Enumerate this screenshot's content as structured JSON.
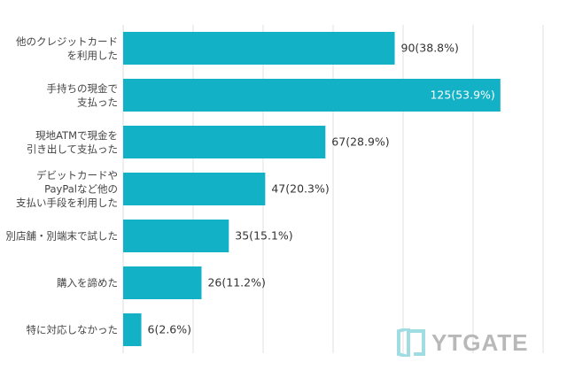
{
  "chart_data": {
    "type": "bar",
    "orientation": "horizontal",
    "categories": [
      [
        "他のクレジットカード",
        "を利用した"
      ],
      [
        "手持ちの現金で",
        "支払った"
      ],
      [
        "現地ATMで現金を",
        "引き出して支払った"
      ],
      [
        "デビットカードや",
        "PayPalなど他の",
        "支払い手段を利用した"
      ],
      [
        "別店舗・別端末で試した"
      ],
      [
        "購入を諦めた"
      ],
      [
        "特に対応しなかった"
      ]
    ],
    "values": [
      90,
      125,
      67,
      47,
      35,
      26,
      6
    ],
    "percents": [
      38.8,
      53.9,
      28.9,
      20.3,
      15.1,
      11.2,
      2.6
    ],
    "data_labels": [
      "90(38.8%)",
      "125(53.9%)",
      "67(28.9%)",
      "47(20.3%)",
      "35(15.1%)",
      "26(11.2%)",
      "6(2.6%)"
    ],
    "xlim_percent": [
      0,
      60
    ],
    "grid": true,
    "bar_color": "#13b1c6"
  },
  "logo": {
    "text": "YTGATE",
    "color": "#9fdde3"
  }
}
